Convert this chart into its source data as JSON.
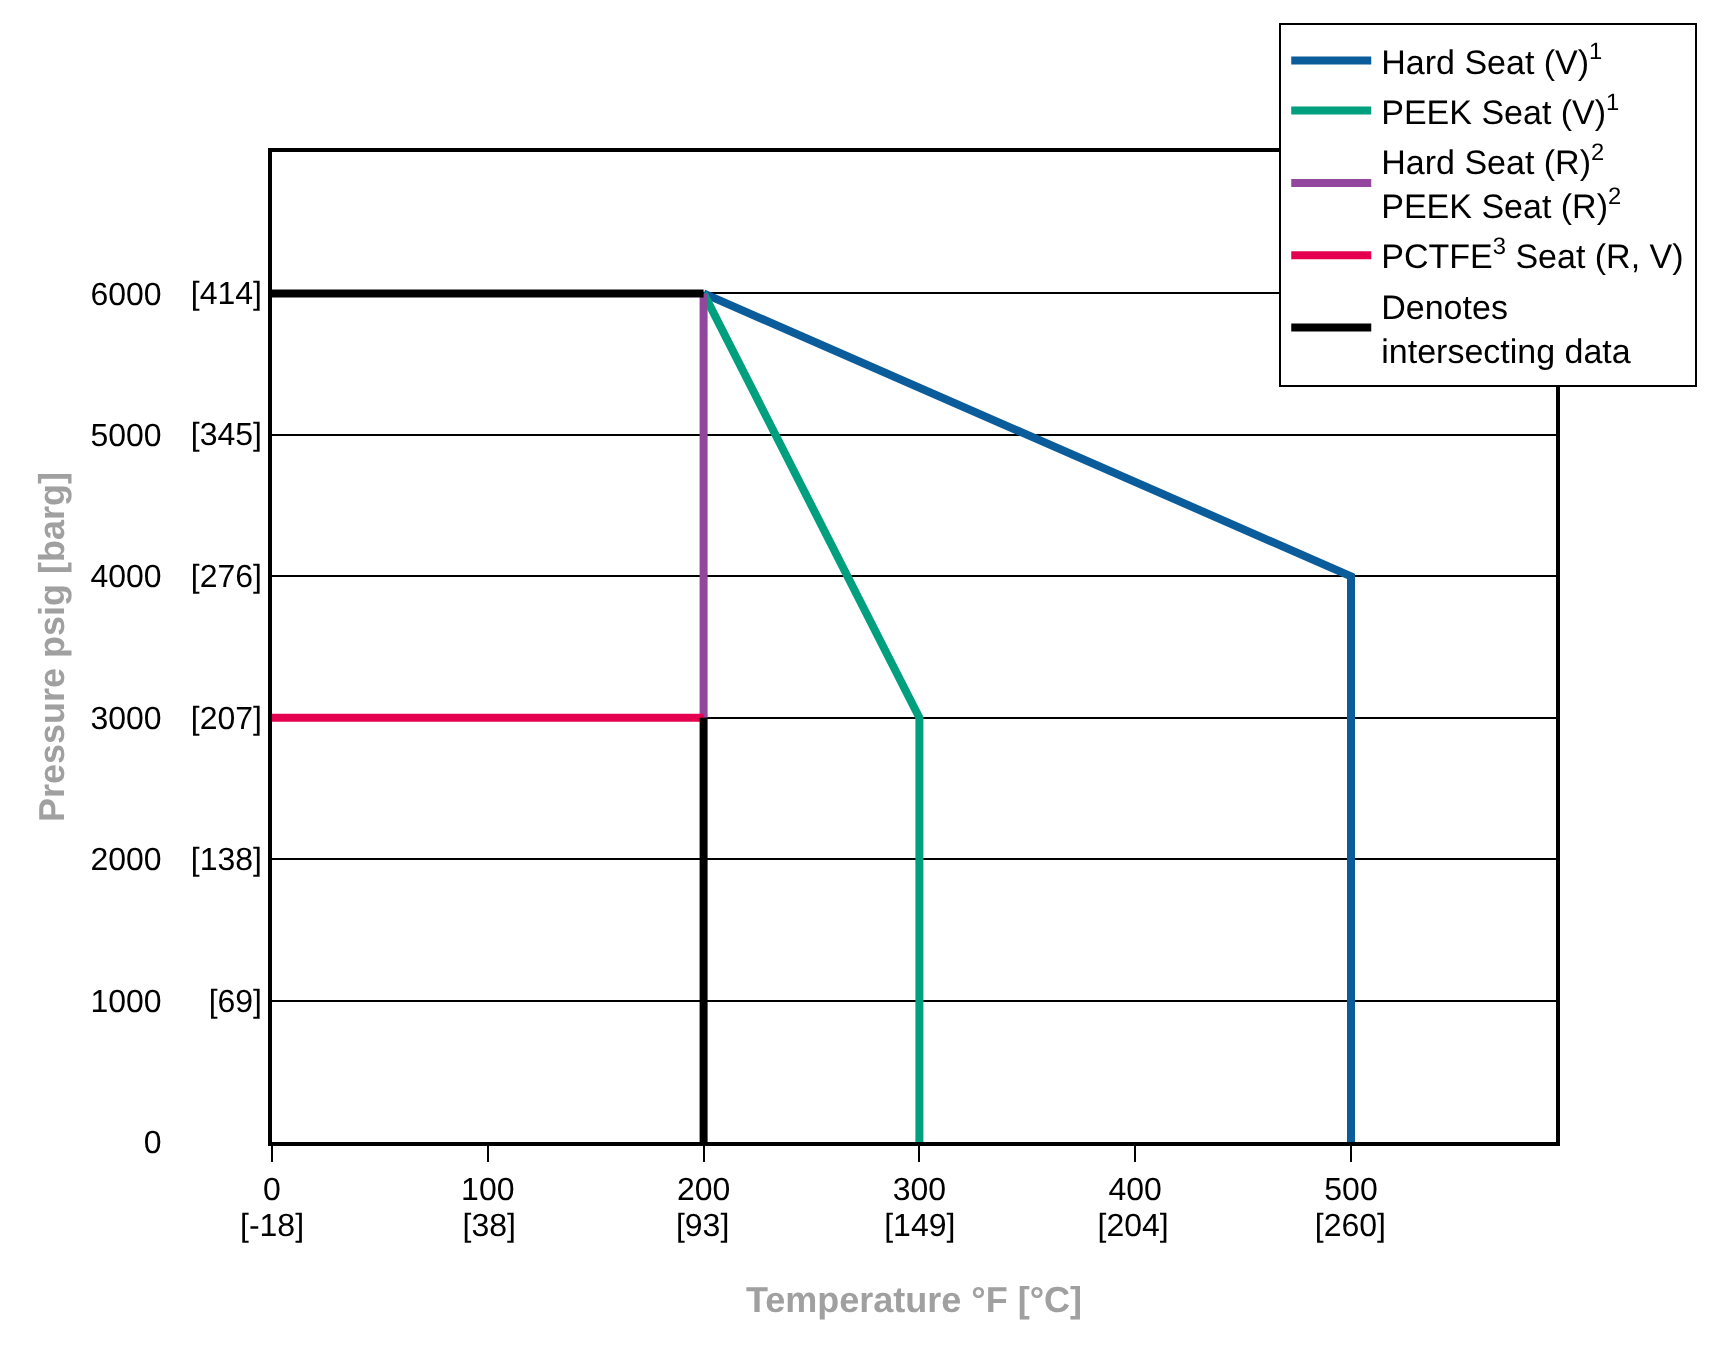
{
  "chart_data": {
    "type": "line",
    "xlabel": "Temperature °F [°C]",
    "ylabel": "Pressure psig [barg]",
    "series": [
      {
        "name": "Hard Seat (V)$^{1}$",
        "color": "#0b5c9a",
        "x": [
          200,
          500,
          500
        ],
        "values": [
          6000,
          4000,
          0
        ]
      },
      {
        "name": "PEEK Seat (V)$^{1}$",
        "color": "#00a07e",
        "x": [
          200,
          300,
          300
        ],
        "values": [
          6000,
          3000,
          0
        ]
      },
      {
        "name": "Hard Seat (R)$^{2}$\nPEEK Seat (R)$^{2}$",
        "color": "#91479b",
        "x": [
          200,
          200
        ],
        "values": [
          3000,
          6000
        ]
      },
      {
        "name": "PCTFE$^{3}$ Seat (R, V)",
        "color": "#e5004f",
        "x": [
          0,
          200
        ],
        "values": [
          3000,
          3000
        ]
      },
      {
        "name": "Denotes\nintersecting data",
        "color": "#000000",
        "x": [
          0,
          200,
          null,
          200,
          200
        ],
        "values": [
          6000,
          6000,
          null,
          3000,
          0
        ]
      }
    ],
    "xlim": [
      0,
      595
    ],
    "xticks": [
      0,
      100,
      200,
      300,
      400,
      500
    ],
    "x2lim": [
      -18,
      313
    ],
    "x2ticks": [
      {
        "value": -18,
        "label": "[-18]"
      },
      {
        "value": 38,
        "label": "[38]"
      },
      {
        "value": 93,
        "label": "[93]"
      },
      {
        "value": 149,
        "label": "[149]"
      },
      {
        "value": 204,
        "label": "[204]"
      },
      {
        "value": 260,
        "label": "[260]"
      }
    ],
    "ylim": [
      0,
      7000
    ],
    "yticks": [
      0,
      1000,
      2000,
      3000,
      4000,
      5000,
      6000
    ],
    "y2lim": [
      0,
      482.6
    ],
    "y2ticks": [
      {
        "value": 69,
        "label": "[69]"
      },
      {
        "value": 138,
        "label": "[138]"
      },
      {
        "value": 207,
        "label": "[207]"
      },
      {
        "value": 276,
        "label": "[276]"
      },
      {
        "value": 345,
        "label": "[345]"
      },
      {
        "value": 414,
        "label": "[414]"
      }
    ],
    "grid": "y",
    "legend": "top right",
    "marker": "none",
    "line_style": "solid"
  }
}
